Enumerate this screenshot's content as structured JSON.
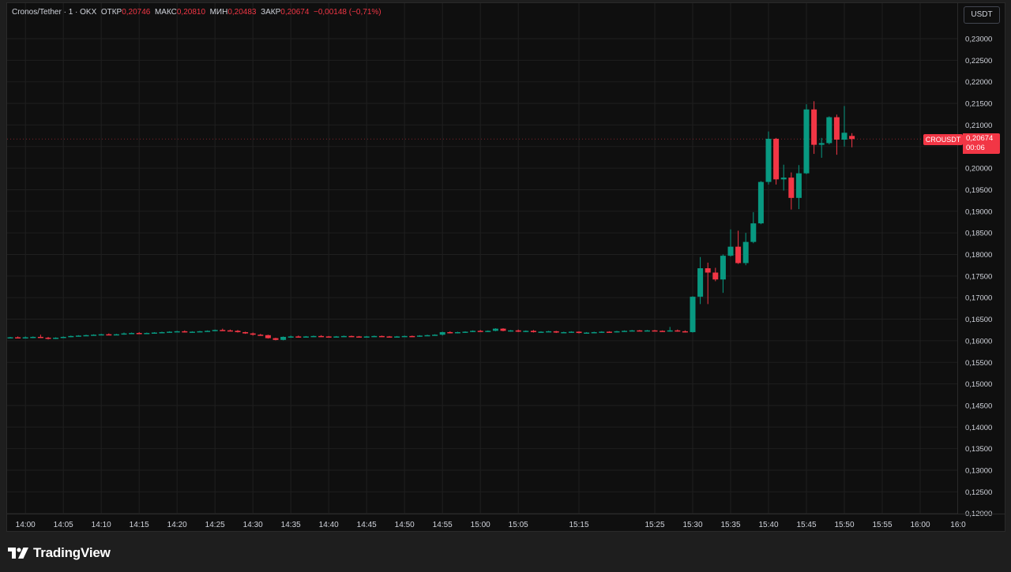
{
  "legend": {
    "symbol": "Cronos/Tether · 1 · OKX",
    "open_label": "ОТКР",
    "open_value": "0,20746",
    "high_label": "МАКС",
    "high_value": "0,20810",
    "low_label": "МИН",
    "low_value": "0,20483",
    "close_label": "ЗАКР",
    "close_value": "0,20674",
    "change": "−0,00148 (−0,71%)"
  },
  "currency_button": "USDT",
  "price_tag": {
    "symbol": "CROUSDT",
    "price": "0,20674",
    "countdown": "00:06"
  },
  "brand": {
    "name": "TradingView"
  },
  "colors": {
    "up": "#089981",
    "down": "#f23645",
    "background": "#0f0f0f",
    "grid": "#1f1f1f",
    "text": "#d1d4dc"
  },
  "chart_data": {
    "type": "candlestick",
    "ylim": [
      0.12,
      0.2325
    ],
    "y_ticks": [
      "0,23000",
      "0,22500",
      "0,22000",
      "0,21500",
      "0,21000",
      "0,20500",
      "0,20000",
      "0,19500",
      "0,19000",
      "0,18500",
      "0,18000",
      "0,17500",
      "0,17000",
      "0,16500",
      "0,16000",
      "0,15500",
      "0,15000",
      "0,14500",
      "0,14000",
      "0,13500",
      "0,13000",
      "0,12500",
      "0,12000"
    ],
    "y_tick_values": [
      0.23,
      0.225,
      0.22,
      0.215,
      0.21,
      0.205,
      0.2,
      0.195,
      0.19,
      0.185,
      0.18,
      0.175,
      0.17,
      0.165,
      0.16,
      0.155,
      0.15,
      0.145,
      0.14,
      0.135,
      0.13,
      0.125,
      0.12
    ],
    "x_ticks": [
      "14:00",
      "14:05",
      "14:10",
      "14:15",
      "14:20",
      "14:25",
      "14:30",
      "14:35",
      "14:40",
      "14:45",
      "14:50",
      "14:55",
      "15:00",
      "15:05",
      "15:15",
      "15:25",
      "15:30",
      "15:35",
      "15:40",
      "15:45",
      "15:50",
      "15:55",
      "16:00",
      "16:0"
    ],
    "x_tick_index": [
      2,
      7,
      12,
      17,
      22,
      27,
      32,
      37,
      42,
      47,
      52,
      57,
      62,
      67,
      75,
      85,
      90,
      95,
      100,
      105,
      110,
      115,
      120,
      125
    ],
    "candles": [
      {
        "i": 0,
        "o": 0.1607,
        "h": 0.1609,
        "l": 0.1606,
        "c": 0.1608
      },
      {
        "i": 1,
        "o": 0.1608,
        "h": 0.161,
        "l": 0.1606,
        "c": 0.1607
      },
      {
        "i": 2,
        "o": 0.1607,
        "h": 0.161,
        "l": 0.1606,
        "c": 0.1608
      },
      {
        "i": 3,
        "o": 0.1608,
        "h": 0.161,
        "l": 0.1606,
        "c": 0.1609
      },
      {
        "i": 4,
        "o": 0.1609,
        "h": 0.1614,
        "l": 0.1607,
        "c": 0.1607
      },
      {
        "i": 5,
        "o": 0.1607,
        "h": 0.1609,
        "l": 0.1603,
        "c": 0.1605
      },
      {
        "i": 6,
        "o": 0.1605,
        "h": 0.1608,
        "l": 0.1604,
        "c": 0.1607
      },
      {
        "i": 7,
        "o": 0.1607,
        "h": 0.161,
        "l": 0.1606,
        "c": 0.1609
      },
      {
        "i": 8,
        "o": 0.1609,
        "h": 0.1612,
        "l": 0.1608,
        "c": 0.1611
      },
      {
        "i": 9,
        "o": 0.1611,
        "h": 0.1613,
        "l": 0.161,
        "c": 0.1612
      },
      {
        "i": 10,
        "o": 0.1612,
        "h": 0.1614,
        "l": 0.1611,
        "c": 0.1613
      },
      {
        "i": 11,
        "o": 0.1613,
        "h": 0.1615,
        "l": 0.1612,
        "c": 0.1614
      },
      {
        "i": 12,
        "o": 0.1614,
        "h": 0.1616,
        "l": 0.1613,
        "c": 0.1615
      },
      {
        "i": 13,
        "o": 0.1615,
        "h": 0.1617,
        "l": 0.1613,
        "c": 0.1614
      },
      {
        "i": 14,
        "o": 0.1614,
        "h": 0.1616,
        "l": 0.1613,
        "c": 0.1615
      },
      {
        "i": 15,
        "o": 0.1615,
        "h": 0.1619,
        "l": 0.1614,
        "c": 0.1617
      },
      {
        "i": 16,
        "o": 0.1617,
        "h": 0.1619,
        "l": 0.1616,
        "c": 0.1618
      },
      {
        "i": 17,
        "o": 0.1618,
        "h": 0.162,
        "l": 0.1616,
        "c": 0.1617
      },
      {
        "i": 18,
        "o": 0.1617,
        "h": 0.1619,
        "l": 0.1616,
        "c": 0.1618
      },
      {
        "i": 19,
        "o": 0.1618,
        "h": 0.162,
        "l": 0.1617,
        "c": 0.1619
      },
      {
        "i": 20,
        "o": 0.1619,
        "h": 0.1621,
        "l": 0.1618,
        "c": 0.162
      },
      {
        "i": 21,
        "o": 0.162,
        "h": 0.1622,
        "l": 0.1619,
        "c": 0.1621
      },
      {
        "i": 22,
        "o": 0.1621,
        "h": 0.1623,
        "l": 0.162,
        "c": 0.1622
      },
      {
        "i": 23,
        "o": 0.1622,
        "h": 0.1624,
        "l": 0.1619,
        "c": 0.162
      },
      {
        "i": 24,
        "o": 0.162,
        "h": 0.1622,
        "l": 0.1619,
        "c": 0.1621
      },
      {
        "i": 25,
        "o": 0.1621,
        "h": 0.1623,
        "l": 0.162,
        "c": 0.1622
      },
      {
        "i": 26,
        "o": 0.1622,
        "h": 0.1624,
        "l": 0.1621,
        "c": 0.1623
      },
      {
        "i": 27,
        "o": 0.1623,
        "h": 0.1626,
        "l": 0.1622,
        "c": 0.1625
      },
      {
        "i": 28,
        "o": 0.1625,
        "h": 0.1628,
        "l": 0.1623,
        "c": 0.1624
      },
      {
        "i": 29,
        "o": 0.1624,
        "h": 0.1626,
        "l": 0.1622,
        "c": 0.1623
      },
      {
        "i": 30,
        "o": 0.1623,
        "h": 0.1625,
        "l": 0.1619,
        "c": 0.162
      },
      {
        "i": 31,
        "o": 0.162,
        "h": 0.1621,
        "l": 0.1616,
        "c": 0.1617
      },
      {
        "i": 32,
        "o": 0.1617,
        "h": 0.1619,
        "l": 0.1612,
        "c": 0.1614
      },
      {
        "i": 33,
        "o": 0.1614,
        "h": 0.1616,
        "l": 0.1612,
        "c": 0.1613
      },
      {
        "i": 34,
        "o": 0.1613,
        "h": 0.1614,
        "l": 0.1605,
        "c": 0.1606
      },
      {
        "i": 35,
        "o": 0.1606,
        "h": 0.1607,
        "l": 0.1601,
        "c": 0.1602
      },
      {
        "i": 36,
        "o": 0.1602,
        "h": 0.161,
        "l": 0.1601,
        "c": 0.1609
      },
      {
        "i": 37,
        "o": 0.1609,
        "h": 0.1612,
        "l": 0.1607,
        "c": 0.161
      },
      {
        "i": 38,
        "o": 0.161,
        "h": 0.1612,
        "l": 0.1608,
        "c": 0.1609
      },
      {
        "i": 39,
        "o": 0.1609,
        "h": 0.1611,
        "l": 0.1608,
        "c": 0.161
      },
      {
        "i": 40,
        "o": 0.161,
        "h": 0.1612,
        "l": 0.1609,
        "c": 0.1611
      },
      {
        "i": 41,
        "o": 0.1611,
        "h": 0.1613,
        "l": 0.1609,
        "c": 0.161
      },
      {
        "i": 42,
        "o": 0.161,
        "h": 0.1611,
        "l": 0.1608,
        "c": 0.1609
      },
      {
        "i": 43,
        "o": 0.1609,
        "h": 0.1611,
        "l": 0.1608,
        "c": 0.161
      },
      {
        "i": 44,
        "o": 0.161,
        "h": 0.1612,
        "l": 0.1609,
        "c": 0.1611
      },
      {
        "i": 45,
        "o": 0.1611,
        "h": 0.1612,
        "l": 0.1609,
        "c": 0.161
      },
      {
        "i": 46,
        "o": 0.161,
        "h": 0.1611,
        "l": 0.1608,
        "c": 0.1609
      },
      {
        "i": 47,
        "o": 0.1609,
        "h": 0.1611,
        "l": 0.1608,
        "c": 0.161
      },
      {
        "i": 48,
        "o": 0.161,
        "h": 0.1612,
        "l": 0.1609,
        "c": 0.1611
      },
      {
        "i": 49,
        "o": 0.1611,
        "h": 0.1612,
        "l": 0.1609,
        "c": 0.161
      },
      {
        "i": 50,
        "o": 0.161,
        "h": 0.1611,
        "l": 0.1608,
        "c": 0.1609
      },
      {
        "i": 51,
        "o": 0.1609,
        "h": 0.1611,
        "l": 0.1608,
        "c": 0.161
      },
      {
        "i": 52,
        "o": 0.161,
        "h": 0.1612,
        "l": 0.1609,
        "c": 0.1611
      },
      {
        "i": 53,
        "o": 0.1611,
        "h": 0.1612,
        "l": 0.1609,
        "c": 0.161
      },
      {
        "i": 54,
        "o": 0.161,
        "h": 0.1613,
        "l": 0.1609,
        "c": 0.1612
      },
      {
        "i": 55,
        "o": 0.1612,
        "h": 0.1614,
        "l": 0.1611,
        "c": 0.1613
      },
      {
        "i": 56,
        "o": 0.1613,
        "h": 0.1615,
        "l": 0.1612,
        "c": 0.1614
      },
      {
        "i": 57,
        "o": 0.1614,
        "h": 0.1621,
        "l": 0.1612,
        "c": 0.162
      },
      {
        "i": 58,
        "o": 0.162,
        "h": 0.1622,
        "l": 0.1617,
        "c": 0.1619
      },
      {
        "i": 59,
        "o": 0.1619,
        "h": 0.1621,
        "l": 0.1617,
        "c": 0.162
      },
      {
        "i": 60,
        "o": 0.162,
        "h": 0.1622,
        "l": 0.1618,
        "c": 0.1621
      },
      {
        "i": 61,
        "o": 0.1621,
        "h": 0.1624,
        "l": 0.162,
        "c": 0.1623
      },
      {
        "i": 62,
        "o": 0.1623,
        "h": 0.1625,
        "l": 0.1621,
        "c": 0.1622
      },
      {
        "i": 63,
        "o": 0.1622,
        "h": 0.1624,
        "l": 0.162,
        "c": 0.1623
      },
      {
        "i": 64,
        "o": 0.1623,
        "h": 0.1629,
        "l": 0.1622,
        "c": 0.1628
      },
      {
        "i": 65,
        "o": 0.1628,
        "h": 0.1629,
        "l": 0.1622,
        "c": 0.1623
      },
      {
        "i": 66,
        "o": 0.1623,
        "h": 0.1625,
        "l": 0.1621,
        "c": 0.1624
      },
      {
        "i": 67,
        "o": 0.1624,
        "h": 0.1626,
        "l": 0.162,
        "c": 0.1621
      },
      {
        "i": 68,
        "o": 0.1621,
        "h": 0.1624,
        "l": 0.162,
        "c": 0.1623
      },
      {
        "i": 69,
        "o": 0.1623,
        "h": 0.1625,
        "l": 0.1619,
        "c": 0.162
      },
      {
        "i": 70,
        "o": 0.162,
        "h": 0.1622,
        "l": 0.1619,
        "c": 0.1621
      },
      {
        "i": 71,
        "o": 0.1621,
        "h": 0.1623,
        "l": 0.162,
        "c": 0.1622
      },
      {
        "i": 72,
        "o": 0.1622,
        "h": 0.1623,
        "l": 0.1618,
        "c": 0.1619
      },
      {
        "i": 73,
        "o": 0.1619,
        "h": 0.1621,
        "l": 0.1618,
        "c": 0.162
      },
      {
        "i": 74,
        "o": 0.162,
        "h": 0.1622,
        "l": 0.1619,
        "c": 0.1621
      },
      {
        "i": 75,
        "o": 0.1621,
        "h": 0.1622,
        "l": 0.1617,
        "c": 0.1618
      },
      {
        "i": 76,
        "o": 0.1618,
        "h": 0.162,
        "l": 0.1617,
        "c": 0.1619
      },
      {
        "i": 77,
        "o": 0.1619,
        "h": 0.1621,
        "l": 0.1618,
        "c": 0.162
      },
      {
        "i": 78,
        "o": 0.162,
        "h": 0.1622,
        "l": 0.1619,
        "c": 0.1621
      },
      {
        "i": 79,
        "o": 0.1621,
        "h": 0.1622,
        "l": 0.1619,
        "c": 0.162
      },
      {
        "i": 80,
        "o": 0.162,
        "h": 0.1623,
        "l": 0.1619,
        "c": 0.1622
      },
      {
        "i": 81,
        "o": 0.1622,
        "h": 0.1624,
        "l": 0.1621,
        "c": 0.1623
      },
      {
        "i": 82,
        "o": 0.1623,
        "h": 0.1625,
        "l": 0.1622,
        "c": 0.1624
      },
      {
        "i": 83,
        "o": 0.1624,
        "h": 0.1625,
        "l": 0.1622,
        "c": 0.1623
      },
      {
        "i": 84,
        "o": 0.1623,
        "h": 0.1625,
        "l": 0.1622,
        "c": 0.1624
      },
      {
        "i": 85,
        "o": 0.1624,
        "h": 0.1625,
        "l": 0.1622,
        "c": 0.1623
      },
      {
        "i": 86,
        "o": 0.1623,
        "h": 0.1624,
        "l": 0.1621,
        "c": 0.1622
      },
      {
        "i": 87,
        "o": 0.1622,
        "h": 0.1632,
        "l": 0.1621,
        "c": 0.1624
      },
      {
        "i": 88,
        "o": 0.1624,
        "h": 0.1626,
        "l": 0.1621,
        "c": 0.1622
      },
      {
        "i": 89,
        "o": 0.1622,
        "h": 0.1624,
        "l": 0.1619,
        "c": 0.162
      },
      {
        "i": 90,
        "o": 0.162,
        "h": 0.1703,
        "l": 0.1619,
        "c": 0.1702
      },
      {
        "i": 91,
        "o": 0.1702,
        "h": 0.1794,
        "l": 0.1685,
        "c": 0.1768
      },
      {
        "i": 92,
        "o": 0.1768,
        "h": 0.1781,
        "l": 0.1685,
        "c": 0.1758
      },
      {
        "i": 93,
        "o": 0.1758,
        "h": 0.1769,
        "l": 0.1738,
        "c": 0.1742
      },
      {
        "i": 94,
        "o": 0.1742,
        "h": 0.18,
        "l": 0.1711,
        "c": 0.1797
      },
      {
        "i": 95,
        "o": 0.1797,
        "h": 0.1858,
        "l": 0.1795,
        "c": 0.1818
      },
      {
        "i": 96,
        "o": 0.1818,
        "h": 0.1855,
        "l": 0.1778,
        "c": 0.178
      },
      {
        "i": 97,
        "o": 0.178,
        "h": 0.185,
        "l": 0.1775,
        "c": 0.1829
      },
      {
        "i": 98,
        "o": 0.1829,
        "h": 0.1898,
        "l": 0.1826,
        "c": 0.1872
      },
      {
        "i": 99,
        "o": 0.1872,
        "h": 0.197,
        "l": 0.187,
        "c": 0.1968
      },
      {
        "i": 100,
        "o": 0.1968,
        "h": 0.2085,
        "l": 0.1962,
        "c": 0.2068
      },
      {
        "i": 101,
        "o": 0.2068,
        "h": 0.207,
        "l": 0.1962,
        "c": 0.1974
      },
      {
        "i": 102,
        "o": 0.1974,
        "h": 0.2008,
        "l": 0.1948,
        "c": 0.1978
      },
      {
        "i": 103,
        "o": 0.1978,
        "h": 0.199,
        "l": 0.1904,
        "c": 0.1931
      },
      {
        "i": 104,
        "o": 0.1931,
        "h": 0.2007,
        "l": 0.1905,
        "c": 0.1988
      },
      {
        "i": 105,
        "o": 0.1988,
        "h": 0.2148,
        "l": 0.1986,
        "c": 0.2136
      },
      {
        "i": 106,
        "o": 0.2136,
        "h": 0.2155,
        "l": 0.2033,
        "c": 0.2054
      },
      {
        "i": 107,
        "o": 0.2054,
        "h": 0.207,
        "l": 0.2024,
        "c": 0.2058
      },
      {
        "i": 108,
        "o": 0.2058,
        "h": 0.212,
        "l": 0.2055,
        "c": 0.2118
      },
      {
        "i": 109,
        "o": 0.2118,
        "h": 0.2124,
        "l": 0.2031,
        "c": 0.2066
      },
      {
        "i": 110,
        "o": 0.2066,
        "h": 0.2144,
        "l": 0.205,
        "c": 0.2082
      },
      {
        "i": 111,
        "o": 0.20746,
        "h": 0.2081,
        "l": 0.20483,
        "c": 0.20674
      }
    ]
  }
}
